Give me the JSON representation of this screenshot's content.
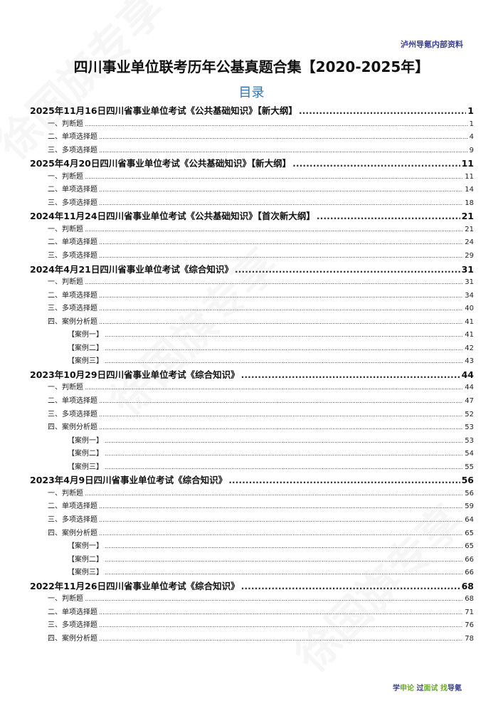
{
  "header": {
    "brand": "泸州导氪内部资料"
  },
  "title": "四川事业单位联考历年公基真题合集【2020-2025年】",
  "toc_heading": "目录",
  "watermark": "徐国旗专享",
  "entries": [
    {
      "level": "h",
      "text": "2025年11月16日四川省事业单位考试《公共基础知识》【新大纲】",
      "page": "1"
    },
    {
      "level": "s",
      "text": "一、判断题",
      "page": "1"
    },
    {
      "level": "s",
      "text": "二、单项选择题",
      "page": "4"
    },
    {
      "level": "s",
      "text": "三、多项选择题",
      "page": "9"
    },
    {
      "level": "h",
      "text": "2025年4月20日四川省事业单位考试《公共基础知识》【新大纲】",
      "page": "11"
    },
    {
      "level": "s",
      "text": "一、判断题",
      "page": "11"
    },
    {
      "level": "s",
      "text": "二、单项选择题",
      "page": "14"
    },
    {
      "level": "s",
      "text": "三、多项选择题",
      "page": "18"
    },
    {
      "level": "h",
      "text": "2024年11月24日四川省事业单位考试《公共基础知识》【首次新大纲】",
      "page": "21"
    },
    {
      "level": "s",
      "text": "一、判断题",
      "page": "21"
    },
    {
      "level": "s",
      "text": "二、单项选择题",
      "page": "24"
    },
    {
      "level": "s",
      "text": "三、多项选择题",
      "page": "29"
    },
    {
      "level": "h",
      "text": "2024年4月21日四川省事业单位考试《综合知识》",
      "page": "31"
    },
    {
      "level": "s",
      "text": "一、判断题",
      "page": "31"
    },
    {
      "level": "s",
      "text": "二、单项选择题",
      "page": "34"
    },
    {
      "level": "s",
      "text": "三、多项选择题",
      "page": "40"
    },
    {
      "level": "s",
      "text": "四、案例分析题",
      "page": "41"
    },
    {
      "level": "c",
      "text": "【案例一】",
      "page": "41"
    },
    {
      "level": "c",
      "text": "【案例二】",
      "page": "42"
    },
    {
      "level": "c",
      "text": "【案例三】",
      "page": "43"
    },
    {
      "level": "h",
      "text": "2023年10月29日四川省事业单位考试《综合知识》",
      "page": "44"
    },
    {
      "level": "s",
      "text": "一、判断题",
      "page": "44"
    },
    {
      "level": "s",
      "text": "二、单项选择题",
      "page": "47"
    },
    {
      "level": "s",
      "text": "三、多项选择题",
      "page": "52"
    },
    {
      "level": "s",
      "text": "四、案例分析题",
      "page": "53"
    },
    {
      "level": "c",
      "text": "【案例一】",
      "page": "53"
    },
    {
      "level": "c",
      "text": "【案例二】",
      "page": "54"
    },
    {
      "level": "c",
      "text": "【案例三】",
      "page": "55"
    },
    {
      "level": "h",
      "text": "2023年4月9日四川省事业单位考试《综合知识》",
      "page": "56"
    },
    {
      "level": "s",
      "text": "一、判断题",
      "page": "56"
    },
    {
      "level": "s",
      "text": "二、单项选择题",
      "page": "59"
    },
    {
      "level": "s",
      "text": "三、多项选择题",
      "page": "64"
    },
    {
      "level": "s",
      "text": "四、案例分析题",
      "page": "65"
    },
    {
      "level": "c",
      "text": "【案例一】",
      "page": "65"
    },
    {
      "level": "c",
      "text": "【案例二】",
      "page": "66"
    },
    {
      "level": "c",
      "text": "【案例三】",
      "page": "66"
    },
    {
      "level": "h",
      "text": "2022年11月26日四川省事业单位考试《综合知识》",
      "page": "68"
    },
    {
      "level": "s",
      "text": "一、判断题",
      "page": "68"
    },
    {
      "level": "s",
      "text": "二、单项选择题",
      "page": "71"
    },
    {
      "level": "s",
      "text": "三、多项选择题",
      "page": "76"
    },
    {
      "level": "s",
      "text": "四、案例分析题",
      "page": "78"
    }
  ],
  "footer": {
    "parts": [
      {
        "text": "学",
        "color": "#3a3f8f"
      },
      {
        "text": "申论 ",
        "color": "#6aaa2a"
      },
      {
        "text": "过",
        "color": "#3a3f8f"
      },
      {
        "text": "面试 ",
        "color": "#6aaa2a"
      },
      {
        "text": "找",
        "color": "#6aaa2a"
      },
      {
        "text": "导氪",
        "color": "#3a3f8f"
      }
    ]
  },
  "colors": {
    "brand": "#3a3f8f",
    "toc_heading": "#2e74b5",
    "green": "#6aaa2a"
  }
}
